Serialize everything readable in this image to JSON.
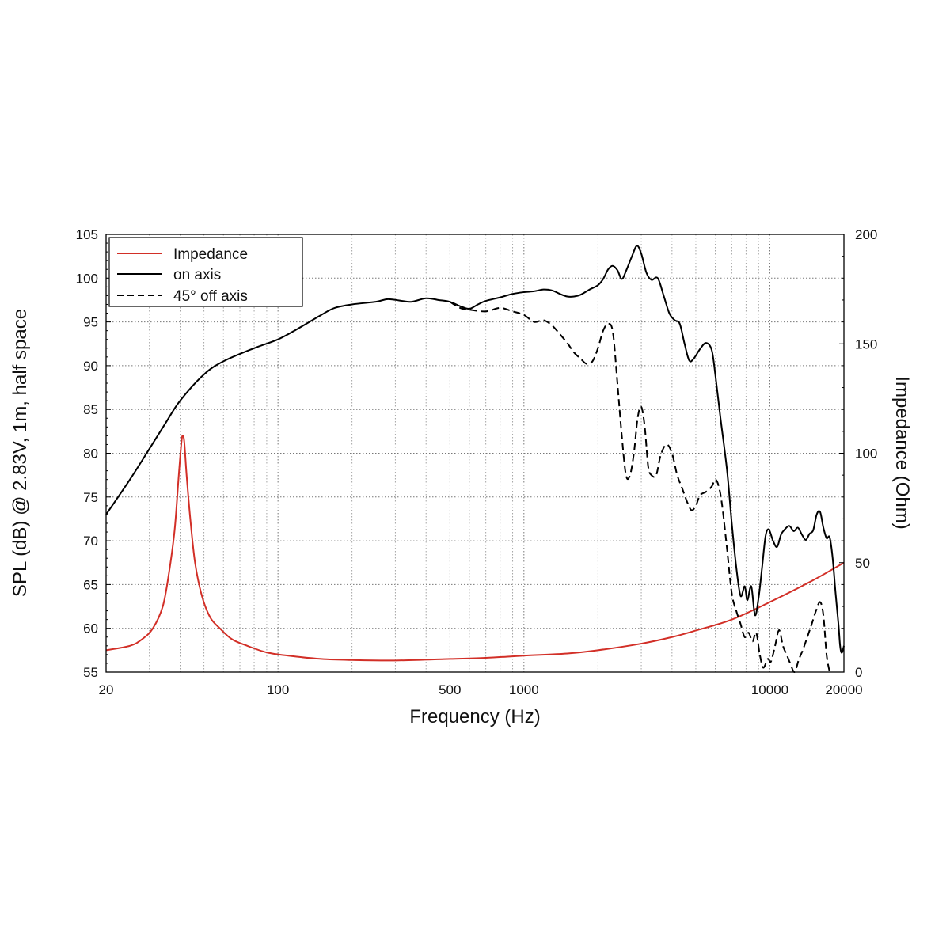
{
  "chart_data": {
    "type": "line",
    "xlabel": "Frequency (Hz)",
    "ylabel": "SPL (dB) @ 2.83V, 1m, half space",
    "y2label": "Impedance (Ohm)",
    "xscale": "log",
    "xlim": [
      20,
      20000
    ],
    "ylim": [
      55,
      105
    ],
    "y2lim": [
      0,
      200
    ],
    "x_ticks": [
      20,
      100,
      500,
      1000,
      10000,
      20000
    ],
    "x_tick_labels": [
      "20",
      "100",
      "500",
      "1000",
      "10000",
      "20000"
    ],
    "y_ticks": [
      55,
      60,
      65,
      70,
      75,
      80,
      85,
      90,
      95,
      100,
      105
    ],
    "y_tick_labels": [
      "55",
      "60",
      "65",
      "70",
      "75",
      "80",
      "85",
      "90",
      "95",
      "100",
      "105"
    ],
    "y2_ticks": [
      0,
      50,
      100,
      150,
      200
    ],
    "y2_tick_labels": [
      "0",
      "50",
      "100",
      "150",
      "200"
    ],
    "grid": true,
    "legend_position": "top-left",
    "colors": {
      "impedance": "#d22f27",
      "on_axis": "#000000",
      "off_axis": "#000000"
    },
    "series": [
      {
        "name": "Impedance",
        "axis": "right",
        "style": "solid",
        "color": "#d22f27",
        "points": [
          [
            20,
            10
          ],
          [
            25,
            12
          ],
          [
            28,
            15
          ],
          [
            31,
            20
          ],
          [
            34,
            30
          ],
          [
            36,
            45
          ],
          [
            38,
            65
          ],
          [
            39.5,
            90
          ],
          [
            40.5,
            105
          ],
          [
            41,
            108
          ],
          [
            41.6,
            105
          ],
          [
            42.5,
            90
          ],
          [
            44,
            70
          ],
          [
            46,
            50
          ],
          [
            49,
            35
          ],
          [
            53,
            25
          ],
          [
            58,
            20
          ],
          [
            65,
            15
          ],
          [
            75,
            12
          ],
          [
            90,
            9
          ],
          [
            110,
            7.5
          ],
          [
            150,
            6
          ],
          [
            200,
            5.5
          ],
          [
            300,
            5.3
          ],
          [
            500,
            6
          ],
          [
            700,
            6.5
          ],
          [
            1000,
            7.5
          ],
          [
            1500,
            8.5
          ],
          [
            2000,
            10
          ],
          [
            3000,
            13
          ],
          [
            4000,
            16
          ],
          [
            5000,
            19
          ],
          [
            7000,
            24
          ],
          [
            10000,
            32
          ],
          [
            15000,
            42
          ],
          [
            20000,
            50
          ]
        ]
      },
      {
        "name": "on axis",
        "axis": "left",
        "style": "solid",
        "color": "#000000",
        "points": [
          [
            20,
            73
          ],
          [
            25,
            77
          ],
          [
            30,
            80.5
          ],
          [
            35,
            83.5
          ],
          [
            40,
            86
          ],
          [
            50,
            89
          ],
          [
            60,
            90.5
          ],
          [
            80,
            92
          ],
          [
            100,
            93
          ],
          [
            120,
            94.2
          ],
          [
            150,
            95.8
          ],
          [
            170,
            96.6
          ],
          [
            200,
            97
          ],
          [
            250,
            97.3
          ],
          [
            280,
            97.6
          ],
          [
            320,
            97.4
          ],
          [
            350,
            97.3
          ],
          [
            400,
            97.7
          ],
          [
            450,
            97.5
          ],
          [
            500,
            97.3
          ],
          [
            550,
            96.8
          ],
          [
            600,
            96.5
          ],
          [
            650,
            97
          ],
          [
            700,
            97.4
          ],
          [
            800,
            97.8
          ],
          [
            900,
            98.2
          ],
          [
            1000,
            98.4
          ],
          [
            1100,
            98.5
          ],
          [
            1200,
            98.7
          ],
          [
            1300,
            98.6
          ],
          [
            1400,
            98.2
          ],
          [
            1500,
            97.9
          ],
          [
            1600,
            97.9
          ],
          [
            1700,
            98.1
          ],
          [
            1850,
            98.7
          ],
          [
            2000,
            99.2
          ],
          [
            2100,
            99.9
          ],
          [
            2200,
            101
          ],
          [
            2300,
            101.4
          ],
          [
            2400,
            100.9
          ],
          [
            2500,
            99.9
          ],
          [
            2600,
            100.8
          ],
          [
            2750,
            102.5
          ],
          [
            2880,
            103.7
          ],
          [
            3000,
            102.8
          ],
          [
            3150,
            100.6
          ],
          [
            3300,
            99.8
          ],
          [
            3500,
            100
          ],
          [
            3700,
            98
          ],
          [
            3900,
            96
          ],
          [
            4100,
            95.2
          ],
          [
            4300,
            94.8
          ],
          [
            4500,
            92.5
          ],
          [
            4700,
            90.6
          ],
          [
            4900,
            90.8
          ],
          [
            5200,
            91.9
          ],
          [
            5500,
            92.6
          ],
          [
            5800,
            91.8
          ],
          [
            6000,
            89
          ],
          [
            6300,
            84
          ],
          [
            6700,
            78
          ],
          [
            7000,
            72
          ],
          [
            7300,
            67
          ],
          [
            7600,
            63.7
          ],
          [
            7900,
            64.8
          ],
          [
            8100,
            63.2
          ],
          [
            8400,
            64.8
          ],
          [
            8700,
            61.5
          ],
          [
            9000,
            63.5
          ],
          [
            9300,
            67
          ],
          [
            9600,
            70.5
          ],
          [
            9900,
            71.3
          ],
          [
            10300,
            70
          ],
          [
            10700,
            69.3
          ],
          [
            11100,
            70.7
          ],
          [
            11500,
            71.3
          ],
          [
            12000,
            71.7
          ],
          [
            12500,
            71.1
          ],
          [
            13000,
            71.5
          ],
          [
            13500,
            70.7
          ],
          [
            14000,
            70.1
          ],
          [
            14500,
            70.8
          ],
          [
            15000,
            71.2
          ],
          [
            15500,
            73
          ],
          [
            16000,
            73.3
          ],
          [
            16500,
            71.5
          ],
          [
            17000,
            70.3
          ],
          [
            17500,
            70.4
          ],
          [
            18000,
            68
          ],
          [
            18500,
            64
          ],
          [
            19000,
            60.5
          ],
          [
            19300,
            58
          ],
          [
            19600,
            57.2
          ],
          [
            20000,
            58
          ]
        ]
      },
      {
        "name": "45° off axis",
        "axis": "left",
        "style": "dashed",
        "color": "#000000",
        "points": [
          [
            500,
            97.3
          ],
          [
            550,
            96.6
          ],
          [
            600,
            96.4
          ],
          [
            700,
            96.2
          ],
          [
            800,
            96.6
          ],
          [
            900,
            96.2
          ],
          [
            1000,
            95.8
          ],
          [
            1100,
            95
          ],
          [
            1200,
            95.2
          ],
          [
            1300,
            94.6
          ],
          [
            1400,
            93.6
          ],
          [
            1500,
            92.6
          ],
          [
            1600,
            91.5
          ],
          [
            1700,
            90.8
          ],
          [
            1800,
            90.2
          ],
          [
            1900,
            90.5
          ],
          [
            2000,
            92
          ],
          [
            2100,
            94
          ],
          [
            2200,
            94.8
          ],
          [
            2300,
            93.8
          ],
          [
            2400,
            88
          ],
          [
            2500,
            82
          ],
          [
            2600,
            77.5
          ],
          [
            2700,
            77.5
          ],
          [
            2800,
            80
          ],
          [
            2900,
            84
          ],
          [
            3000,
            85.3
          ],
          [
            3100,
            83
          ],
          [
            3200,
            78.5
          ],
          [
            3300,
            77.5
          ],
          [
            3450,
            77.5
          ],
          [
            3600,
            79.8
          ],
          [
            3800,
            81
          ],
          [
            4000,
            80
          ],
          [
            4200,
            77.5
          ],
          [
            4400,
            76
          ],
          [
            4600,
            74.5
          ],
          [
            4800,
            73.5
          ],
          [
            5000,
            74
          ],
          [
            5200,
            75.2
          ],
          [
            5500,
            75.6
          ],
          [
            5800,
            76.2
          ],
          [
            6000,
            77
          ],
          [
            6200,
            76.2
          ],
          [
            6400,
            74
          ],
          [
            6700,
            69
          ],
          [
            7000,
            64
          ],
          [
            7300,
            62
          ],
          [
            7600,
            60.5
          ],
          [
            7900,
            59
          ],
          [
            8200,
            59.5
          ],
          [
            8500,
            58.5
          ],
          [
            8800,
            59.5
          ],
          [
            9100,
            57
          ],
          [
            9400,
            55.5
          ],
          [
            9800,
            56.5
          ],
          [
            10100,
            56.2
          ],
          [
            10500,
            58
          ],
          [
            10900,
            59.8
          ],
          [
            11300,
            58
          ],
          [
            11700,
            57
          ],
          [
            12100,
            56
          ],
          [
            12600,
            55
          ],
          [
            13100,
            56.4
          ],
          [
            13600,
            57.5
          ],
          [
            14200,
            59
          ],
          [
            14800,
            60.5
          ],
          [
            15400,
            62
          ],
          [
            16000,
            63
          ],
          [
            16500,
            61.5
          ],
          [
            17000,
            57
          ],
          [
            17500,
            55
          ]
        ]
      }
    ]
  }
}
